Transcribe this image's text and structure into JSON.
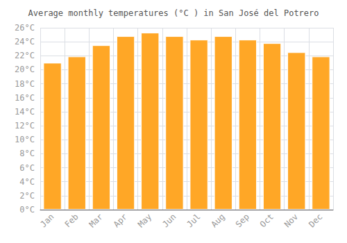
{
  "chart_data": {
    "type": "bar",
    "title": "Average monthly temperatures (°C ) in San José del Potrero",
    "categories": [
      "Jan",
      "Feb",
      "Mar",
      "Apr",
      "May",
      "Jun",
      "Jul",
      "Aug",
      "Sep",
      "Oct",
      "Nov",
      "Dec"
    ],
    "values": [
      21.0,
      21.9,
      23.5,
      24.8,
      25.3,
      24.8,
      24.3,
      24.8,
      24.3,
      23.8,
      22.5,
      21.9
    ],
    "color": "#FFA726",
    "ylim": [
      0,
      26
    ],
    "yticks": [
      {
        "value": 0,
        "label": "0°C"
      },
      {
        "value": 2,
        "label": "2°C"
      },
      {
        "value": 4,
        "label": "4°C"
      },
      {
        "value": 6,
        "label": "6°C"
      },
      {
        "value": 8,
        "label": "8°C"
      },
      {
        "value": 10,
        "label": "10°C"
      },
      {
        "value": 12,
        "label": "12°C"
      },
      {
        "value": 14,
        "label": "14°C"
      },
      {
        "value": 16,
        "label": "16°C"
      },
      {
        "value": 18,
        "label": "18°C"
      },
      {
        "value": 20,
        "label": "20°C"
      },
      {
        "value": 22,
        "label": "22°C"
      },
      {
        "value": 24,
        "label": "24°C"
      },
      {
        "value": 26,
        "label": "26°C"
      }
    ],
    "grid": true
  }
}
